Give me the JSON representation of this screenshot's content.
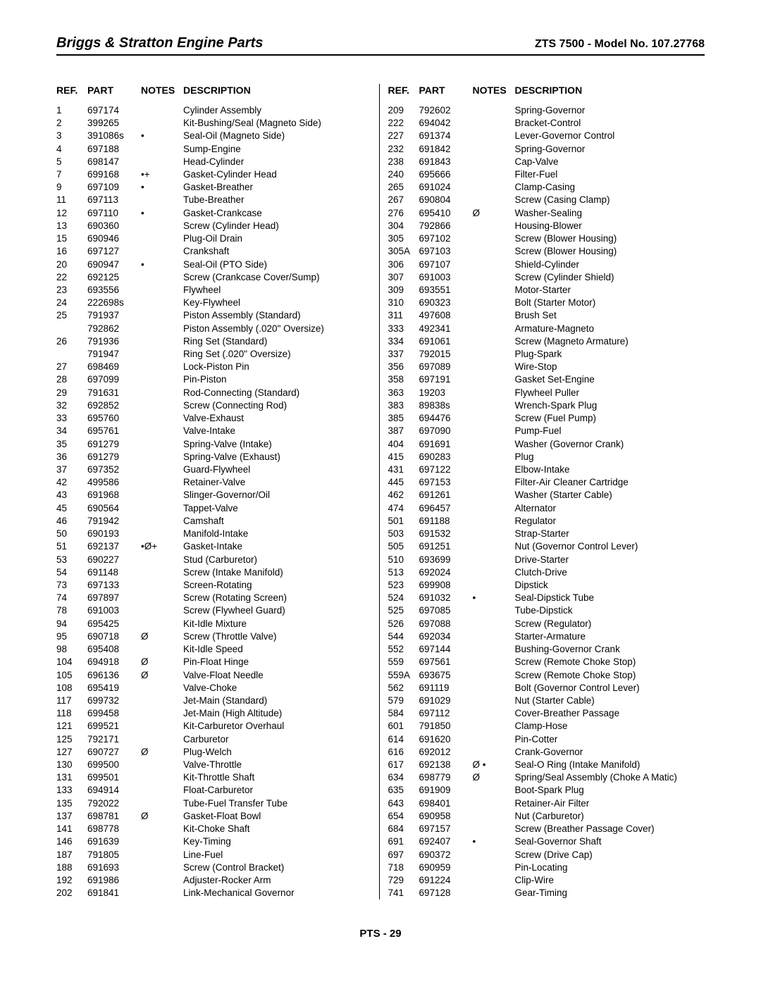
{
  "header": {
    "title_left": "Briggs & Stratton Engine Parts",
    "title_right": "ZTS 7500 - Model No. 107.27768"
  },
  "table": {
    "headers": {
      "ref": "REF.",
      "part": "PART",
      "notes": "NOTES",
      "desc": "DESCRIPTION"
    },
    "left": [
      {
        "ref": "1",
        "part": "697174",
        "notes": "",
        "desc": "Cylinder Assembly"
      },
      {
        "ref": "2",
        "part": "399265",
        "notes": "",
        "desc": "Kit-Bushing/Seal (Magneto Side)"
      },
      {
        "ref": "3",
        "part": "391086s",
        "notes": "•",
        "desc": "Seal-Oil (Magneto Side)"
      },
      {
        "ref": "4",
        "part": "697188",
        "notes": "",
        "desc": "Sump-Engine"
      },
      {
        "ref": "5",
        "part": "698147",
        "notes": "",
        "desc": "Head-Cylinder"
      },
      {
        "ref": "7",
        "part": "699168",
        "notes": "•+",
        "desc": "Gasket-Cylinder Head"
      },
      {
        "ref": "9",
        "part": "697109",
        "notes": "•",
        "desc": "Gasket-Breather"
      },
      {
        "ref": "11",
        "part": "697113",
        "notes": "",
        "desc": "Tube-Breather"
      },
      {
        "ref": "12",
        "part": "697110",
        "notes": "•",
        "desc": "Gasket-Crankcase"
      },
      {
        "ref": "13",
        "part": "690360",
        "notes": "",
        "desc": "Screw (Cylinder Head)"
      },
      {
        "ref": "15",
        "part": "690946",
        "notes": "",
        "desc": "Plug-Oil Drain"
      },
      {
        "ref": "16",
        "part": "697127",
        "notes": "",
        "desc": "Crankshaft"
      },
      {
        "ref": "20",
        "part": "690947",
        "notes": "•",
        "desc": "Seal-Oil (PTO Side)"
      },
      {
        "ref": "22",
        "part": "692125",
        "notes": "",
        "desc": "Screw (Crankcase Cover/Sump)"
      },
      {
        "ref": "23",
        "part": "693556",
        "notes": "",
        "desc": "Flywheel"
      },
      {
        "ref": "24",
        "part": "222698s",
        "notes": "",
        "desc": "Key-Flywheel"
      },
      {
        "ref": "25",
        "part": "791937",
        "notes": "",
        "desc": "Piston Assembly (Standard)"
      },
      {
        "ref": "",
        "part": "792862",
        "notes": "",
        "desc": "Piston Assembly (.020\" Oversize)"
      },
      {
        "ref": "26",
        "part": "791936",
        "notes": "",
        "desc": "Ring Set (Standard)"
      },
      {
        "ref": "",
        "part": "791947",
        "notes": "",
        "desc": "Ring Set (.020\" Oversize)"
      },
      {
        "ref": "27",
        "part": "698469",
        "notes": "",
        "desc": "Lock-Piston Pin"
      },
      {
        "ref": "28",
        "part": "697099",
        "notes": "",
        "desc": "Pin-Piston"
      },
      {
        "ref": "29",
        "part": "791631",
        "notes": "",
        "desc": "Rod-Connecting (Standard)"
      },
      {
        "ref": "32",
        "part": "692852",
        "notes": "",
        "desc": "Screw (Connecting Rod)"
      },
      {
        "ref": "33",
        "part": "695760",
        "notes": "",
        "desc": "Valve-Exhaust"
      },
      {
        "ref": "34",
        "part": "695761",
        "notes": "",
        "desc": "Valve-Intake"
      },
      {
        "ref": "35",
        "part": "691279",
        "notes": "",
        "desc": "Spring-Valve (Intake)"
      },
      {
        "ref": "36",
        "part": "691279",
        "notes": "",
        "desc": "Spring-Valve (Exhaust)"
      },
      {
        "ref": "37",
        "part": "697352",
        "notes": "",
        "desc": "Guard-Flywheel"
      },
      {
        "ref": "42",
        "part": "499586",
        "notes": "",
        "desc": "Retainer-Valve"
      },
      {
        "ref": "43",
        "part": "691968",
        "notes": "",
        "desc": "Slinger-Governor/Oil"
      },
      {
        "ref": "45",
        "part": "690564",
        "notes": "",
        "desc": "Tappet-Valve"
      },
      {
        "ref": "46",
        "part": "791942",
        "notes": "",
        "desc": "Camshaft"
      },
      {
        "ref": "50",
        "part": "690193",
        "notes": "",
        "desc": "Manifold-Intake"
      },
      {
        "ref": "51",
        "part": "692137",
        "notes": "•Ø+",
        "desc": "Gasket-Intake"
      },
      {
        "ref": "53",
        "part": "690227",
        "notes": "",
        "desc": "Stud (Carburetor)"
      },
      {
        "ref": "54",
        "part": "691148",
        "notes": "",
        "desc": "Screw (Intake Manifold)"
      },
      {
        "ref": "73",
        "part": "697133",
        "notes": "",
        "desc": "Screen-Rotating"
      },
      {
        "ref": "74",
        "part": "697897",
        "notes": "",
        "desc": "Screw (Rotating Screen)"
      },
      {
        "ref": "78",
        "part": "691003",
        "notes": "",
        "desc": "Screw (Flywheel Guard)"
      },
      {
        "ref": "94",
        "part": "695425",
        "notes": "",
        "desc": "Kit-Idle Mixture"
      },
      {
        "ref": "95",
        "part": "690718",
        "notes": "Ø",
        "desc": "Screw (Throttle Valve)"
      },
      {
        "ref": "98",
        "part": "695408",
        "notes": "",
        "desc": "Kit-Idle Speed"
      },
      {
        "ref": "104",
        "part": "694918",
        "notes": "Ø",
        "desc": "Pin-Float Hinge"
      },
      {
        "ref": "105",
        "part": "696136",
        "notes": "Ø",
        "desc": "Valve-Float Needle"
      },
      {
        "ref": "108",
        "part": "695419",
        "notes": "",
        "desc": "Valve-Choke"
      },
      {
        "ref": "117",
        "part": "699732",
        "notes": "",
        "desc": "Jet-Main (Standard)"
      },
      {
        "ref": "118",
        "part": "699458",
        "notes": "",
        "desc": "Jet-Main (High Altitude)"
      },
      {
        "ref": "121",
        "part": "699521",
        "notes": "",
        "desc": "Kit-Carburetor Overhaul"
      },
      {
        "ref": "125",
        "part": "792171",
        "notes": "",
        "desc": "Carburetor"
      },
      {
        "ref": "127",
        "part": "690727",
        "notes": "Ø",
        "desc": "Plug-Welch"
      },
      {
        "ref": "130",
        "part": "699500",
        "notes": "",
        "desc": "Valve-Throttle"
      },
      {
        "ref": "131",
        "part": "699501",
        "notes": "",
        "desc": "Kit-Throttle Shaft"
      },
      {
        "ref": "133",
        "part": "694914",
        "notes": "",
        "desc": "Float-Carburetor"
      },
      {
        "ref": "135",
        "part": "792022",
        "notes": "",
        "desc": "Tube-Fuel Transfer Tube"
      },
      {
        "ref": "137",
        "part": "698781",
        "notes": "Ø",
        "desc": "Gasket-Float Bowl"
      },
      {
        "ref": "141",
        "part": "698778",
        "notes": "",
        "desc": "Kit-Choke Shaft"
      },
      {
        "ref": "146",
        "part": "691639",
        "notes": "",
        "desc": "Key-Timing"
      },
      {
        "ref": "187",
        "part": "791805",
        "notes": "",
        "desc": "Line-Fuel"
      },
      {
        "ref": "188",
        "part": "691693",
        "notes": "",
        "desc": "Screw (Control Bracket)"
      },
      {
        "ref": "192",
        "part": "691986",
        "notes": "",
        "desc": "Adjuster-Rocker Arm"
      },
      {
        "ref": "202",
        "part": "691841",
        "notes": "",
        "desc": "Link-Mechanical Governor"
      }
    ],
    "right": [
      {
        "ref": "209",
        "part": "792602",
        "notes": "",
        "desc": "Spring-Governor"
      },
      {
        "ref": "222",
        "part": "694042",
        "notes": "",
        "desc": "Bracket-Control"
      },
      {
        "ref": "227",
        "part": "691374",
        "notes": "",
        "desc": "Lever-Governor Control"
      },
      {
        "ref": "232",
        "part": "691842",
        "notes": "",
        "desc": "Spring-Governor"
      },
      {
        "ref": "238",
        "part": "691843",
        "notes": "",
        "desc": "Cap-Valve"
      },
      {
        "ref": "240",
        "part": "695666",
        "notes": "",
        "desc": "Filter-Fuel"
      },
      {
        "ref": "265",
        "part": "691024",
        "notes": "",
        "desc": "Clamp-Casing"
      },
      {
        "ref": "267",
        "part": "690804",
        "notes": "",
        "desc": "Screw (Casing Clamp)"
      },
      {
        "ref": "276",
        "part": "695410",
        "notes": "Ø",
        "desc": "Washer-Sealing"
      },
      {
        "ref": "304",
        "part": "792866",
        "notes": "",
        "desc": "Housing-Blower"
      },
      {
        "ref": "305",
        "part": "697102",
        "notes": "",
        "desc": "Screw (Blower Housing)"
      },
      {
        "ref": "305A",
        "part": "697103",
        "notes": "",
        "desc": "Screw (Blower Housing)"
      },
      {
        "ref": "306",
        "part": "697107",
        "notes": "",
        "desc": "Shield-Cylinder"
      },
      {
        "ref": "307",
        "part": "691003",
        "notes": "",
        "desc": "Screw (Cylinder Shield)"
      },
      {
        "ref": "309",
        "part": "693551",
        "notes": "",
        "desc": "Motor-Starter"
      },
      {
        "ref": "310",
        "part": "690323",
        "notes": "",
        "desc": "Bolt (Starter Motor)"
      },
      {
        "ref": "311",
        "part": "497608",
        "notes": "",
        "desc": "Brush Set"
      },
      {
        "ref": "333",
        "part": "492341",
        "notes": "",
        "desc": "Armature-Magneto"
      },
      {
        "ref": "334",
        "part": "691061",
        "notes": "",
        "desc": "Screw (Magneto Armature)"
      },
      {
        "ref": "337",
        "part": "792015",
        "notes": "",
        "desc": "Plug-Spark"
      },
      {
        "ref": "356",
        "part": "697089",
        "notes": "",
        "desc": "Wire-Stop"
      },
      {
        "ref": "358",
        "part": "697191",
        "notes": "",
        "desc": "Gasket Set-Engine"
      },
      {
        "ref": "363",
        "part": "19203",
        "notes": "",
        "desc": "Flywheel Puller"
      },
      {
        "ref": "383",
        "part": "89838s",
        "notes": "",
        "desc": "Wrench-Spark Plug"
      },
      {
        "ref": "385",
        "part": "694476",
        "notes": "",
        "desc": "Screw (Fuel Pump)"
      },
      {
        "ref": "387",
        "part": "697090",
        "notes": "",
        "desc": "Pump-Fuel"
      },
      {
        "ref": "404",
        "part": "691691",
        "notes": "",
        "desc": "Washer (Governor Crank)"
      },
      {
        "ref": "415",
        "part": "690283",
        "notes": "",
        "desc": "Plug"
      },
      {
        "ref": "431",
        "part": "697122",
        "notes": "",
        "desc": "Elbow-Intake"
      },
      {
        "ref": "445",
        "part": "697153",
        "notes": "",
        "desc": "Filter-Air Cleaner Cartridge"
      },
      {
        "ref": "462",
        "part": "691261",
        "notes": "",
        "desc": "Washer (Starter Cable)"
      },
      {
        "ref": "474",
        "part": "696457",
        "notes": "",
        "desc": "Alternator"
      },
      {
        "ref": "501",
        "part": "691188",
        "notes": "",
        "desc": "Regulator"
      },
      {
        "ref": "503",
        "part": "691532",
        "notes": "",
        "desc": "Strap-Starter"
      },
      {
        "ref": "505",
        "part": "691251",
        "notes": "",
        "desc": "Nut (Governor Control Lever)"
      },
      {
        "ref": "510",
        "part": "693699",
        "notes": "",
        "desc": "Drive-Starter"
      },
      {
        "ref": "513",
        "part": "692024",
        "notes": "",
        "desc": "Clutch-Drive"
      },
      {
        "ref": "523",
        "part": "699908",
        "notes": "",
        "desc": "Dipstick"
      },
      {
        "ref": "524",
        "part": "691032",
        "notes": "•",
        "desc": "Seal-Dipstick Tube"
      },
      {
        "ref": "525",
        "part": "697085",
        "notes": "",
        "desc": "Tube-Dipstick"
      },
      {
        "ref": "526",
        "part": "697088",
        "notes": "",
        "desc": " Screw (Regulator)"
      },
      {
        "ref": "544",
        "part": "692034",
        "notes": "",
        "desc": "Starter-Armature"
      },
      {
        "ref": "552",
        "part": "697144",
        "notes": "",
        "desc": "Bushing-Governor Crank"
      },
      {
        "ref": "559",
        "part": "697561",
        "notes": "",
        "desc": "Screw (Remote Choke Stop)"
      },
      {
        "ref": "559A",
        "part": "693675",
        "notes": "",
        "desc": "Screw (Remote Choke Stop)"
      },
      {
        "ref": "562",
        "part": "691119",
        "notes": "",
        "desc": "Bolt (Governor Control Lever)"
      },
      {
        "ref": "579",
        "part": "691029",
        "notes": "",
        "desc": "Nut (Starter Cable)"
      },
      {
        "ref": "584",
        "part": "697112",
        "notes": "",
        "desc": "Cover-Breather Passage"
      },
      {
        "ref": "601",
        "part": "791850",
        "notes": "",
        "desc": "Clamp-Hose"
      },
      {
        "ref": "614",
        "part": "691620",
        "notes": "",
        "desc": "Pin-Cotter"
      },
      {
        "ref": "616",
        "part": "692012",
        "notes": "",
        "desc": "Crank-Governor"
      },
      {
        "ref": "617",
        "part": "692138",
        "notes": "Ø •",
        "desc": "Seal-O Ring (Intake Manifold)"
      },
      {
        "ref": "634",
        "part": "698779",
        "notes": "Ø",
        "desc": "Spring/Seal Assembly (Choke A Matic)"
      },
      {
        "ref": "635",
        "part": "691909",
        "notes": "",
        "desc": "Boot-Spark Plug"
      },
      {
        "ref": "643",
        "part": "698401",
        "notes": "",
        "desc": "Retainer-Air Filter"
      },
      {
        "ref": "654",
        "part": "690958",
        "notes": "",
        "desc": "Nut (Carburetor)"
      },
      {
        "ref": "684",
        "part": "697157",
        "notes": "",
        "desc": "Screw (Breather Passage Cover)"
      },
      {
        "ref": "691",
        "part": "692407",
        "notes": "•",
        "desc": "Seal-Governor Shaft"
      },
      {
        "ref": "697",
        "part": "690372",
        "notes": "",
        "desc": "Screw (Drive Cap)"
      },
      {
        "ref": "718",
        "part": "690959",
        "notes": "",
        "desc": "Pin-Locating"
      },
      {
        "ref": "729",
        "part": "691224",
        "notes": "",
        "desc": "Clip-Wire"
      },
      {
        "ref": "741",
        "part": "697128",
        "notes": "",
        "desc": "Gear-Timing"
      }
    ]
  },
  "footer": "PTS - 29"
}
